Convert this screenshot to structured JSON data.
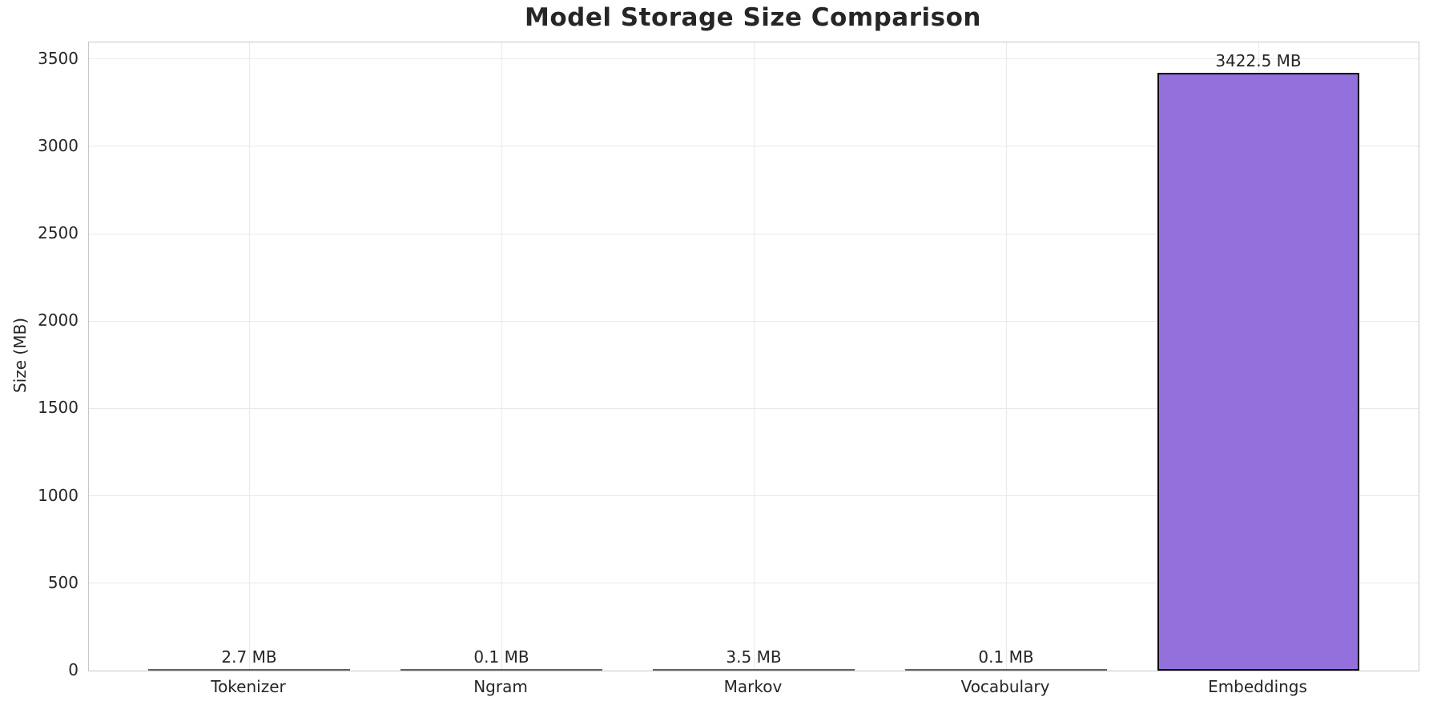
{
  "chart_data": {
    "type": "bar",
    "title": "Model Storage Size Comparison",
    "ylabel": "Size (MB)",
    "categories": [
      "Tokenizer",
      "Ngram",
      "Markov",
      "Vocabulary",
      "Embeddings"
    ],
    "values": [
      2.7,
      0.1,
      3.5,
      0.1,
      3422.5
    ],
    "bar_labels": [
      "2.7 MB",
      "0.1 MB",
      "3.5 MB",
      "0.1 MB",
      "3422.5 MB"
    ],
    "yticks": [
      0,
      500,
      1000,
      1500,
      2000,
      2500,
      3000,
      3500
    ],
    "ylim": [
      0,
      3595
    ],
    "grid": true,
    "legend": false,
    "colors": {
      "bar_fill": "#9370DB",
      "bar_edge": "#000000",
      "grid_line": "#e9e9e9",
      "spine": "#c6c6c6",
      "text": "#262626",
      "background": "#ffffff"
    }
  }
}
